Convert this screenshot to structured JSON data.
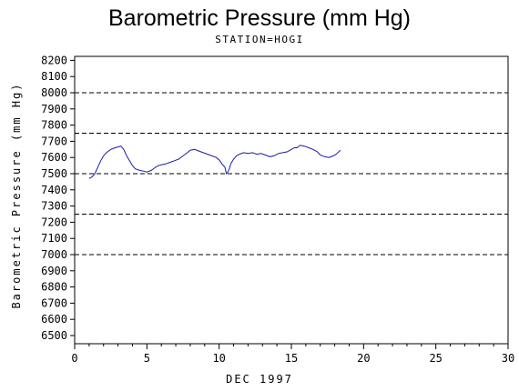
{
  "chart_data": {
    "type": "line",
    "title": "Barometric Pressure (mm Hg)",
    "subtitle": "STATION=HOGI",
    "xlabel": "DEC 1997",
    "ylabel": "Barometric Pressure (mm Hg)",
    "xlim": [
      0,
      30
    ],
    "ylim": [
      6500,
      8200
    ],
    "xticks": [
      0,
      5,
      10,
      15,
      20,
      25,
      30
    ],
    "yticks": [
      6500,
      6600,
      6700,
      6800,
      6900,
      7000,
      7100,
      7200,
      7300,
      7400,
      7500,
      7600,
      7700,
      7800,
      7900,
      8000,
      8100,
      8200
    ],
    "reference_lines": [
      7000,
      7250,
      7500,
      7750,
      8000
    ],
    "line_color": "#1a1aa6",
    "series": [
      {
        "x": [
          1.0,
          1.2,
          1.4,
          1.6,
          1.8,
          2.0,
          2.2,
          2.5,
          2.8,
          3.0,
          3.2,
          3.4,
          3.6,
          3.8,
          4.0,
          4.2,
          4.5,
          4.8,
          5.0,
          5.3,
          5.6,
          5.8,
          6.0,
          6.3,
          6.6,
          6.9,
          7.2,
          7.5,
          7.8,
          8.0,
          8.3,
          8.6,
          8.9,
          9.2,
          9.5,
          9.8,
          10.0,
          10.2,
          10.4,
          10.5,
          10.6,
          10.7,
          10.8,
          11.0,
          11.2,
          11.4,
          11.7,
          12.0,
          12.3,
          12.6,
          12.9,
          13.2,
          13.5,
          13.8,
          14.1,
          14.4,
          14.7,
          15.0,
          15.2,
          15.4,
          15.6,
          15.9,
          16.2,
          16.5,
          16.8,
          17.0,
          17.3,
          17.6,
          17.9,
          18.1,
          18.4
        ],
        "y": [
          7470,
          7480,
          7500,
          7540,
          7580,
          7610,
          7630,
          7650,
          7660,
          7665,
          7670,
          7650,
          7610,
          7580,
          7550,
          7530,
          7520,
          7515,
          7510,
          7520,
          7540,
          7550,
          7555,
          7560,
          7570,
          7580,
          7590,
          7610,
          7630,
          7645,
          7650,
          7640,
          7630,
          7620,
          7610,
          7600,
          7585,
          7560,
          7540,
          7500,
          7510,
          7530,
          7560,
          7590,
          7610,
          7620,
          7630,
          7625,
          7630,
          7620,
          7625,
          7615,
          7605,
          7610,
          7625,
          7630,
          7635,
          7650,
          7660,
          7660,
          7675,
          7670,
          7660,
          7650,
          7635,
          7615,
          7605,
          7600,
          7610,
          7620,
          7645
        ]
      }
    ]
  }
}
